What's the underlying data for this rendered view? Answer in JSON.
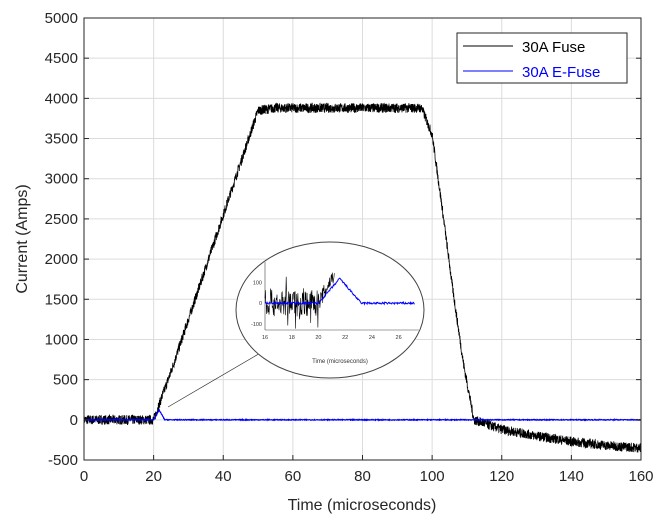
{
  "chart_data": {
    "type": "line",
    "title": "",
    "xlabel": "Time (microseconds)",
    "ylabel": "Current (Amps)",
    "xlim": [
      0,
      160
    ],
    "ylim": [
      -500,
      5000
    ],
    "xticks": [
      0,
      20,
      40,
      60,
      80,
      100,
      120,
      140,
      160
    ],
    "yticks": [
      -500,
      0,
      500,
      1000,
      1500,
      2000,
      2500,
      3000,
      3500,
      4000,
      4500,
      5000
    ],
    "grid": true,
    "legend_placement": "top-right",
    "series": [
      {
        "name": "30A Fuse",
        "color": "#000000",
        "noise_amplitude": 60,
        "x": [
          0,
          20,
          25,
          30,
          35,
          40,
          45,
          50,
          55,
          70,
          90,
          97,
          100,
          103,
          106,
          109,
          112,
          120,
          130,
          140,
          150,
          160
        ],
        "y": [
          0,
          0,
          600,
          1250,
          1900,
          2550,
          3200,
          3850,
          3880,
          3880,
          3880,
          3880,
          3550,
          2600,
          1600,
          700,
          0,
          -120,
          -200,
          -270,
          -320,
          -350
        ]
      },
      {
        "name": "30A E-Fuse",
        "color": "#0000ff",
        "noise_amplitude": 5,
        "x": [
          0,
          20,
          21.6,
          23.2,
          160
        ],
        "y": [
          0,
          0,
          120,
          0,
          0
        ]
      }
    ],
    "inset": {
      "xlabel": "Time (microseconds)",
      "xlim": [
        16,
        27.6
      ],
      "ylim": [
        -130,
        200
      ],
      "xticks": [
        16,
        18,
        20,
        22,
        24,
        26
      ],
      "yticks": [
        -100,
        0,
        100
      ]
    }
  }
}
